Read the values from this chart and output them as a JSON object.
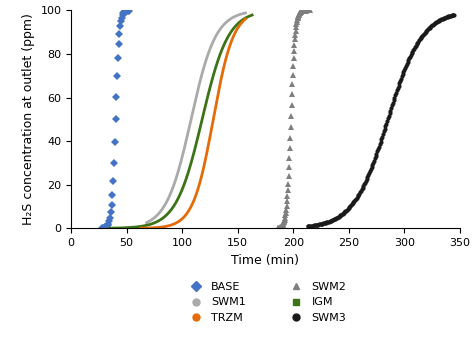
{
  "title": "",
  "xlabel": "Time (min)",
  "ylabel": "H₂S concentration at outlet (ppm)",
  "xlim": [
    0,
    350
  ],
  "ylim": [
    0,
    100
  ],
  "xticks": [
    0,
    50,
    100,
    150,
    200,
    250,
    300,
    350
  ],
  "yticks": [
    0,
    20,
    40,
    60,
    80,
    100
  ],
  "series": {
    "BASE": {
      "color": "#4472C4",
      "marker": "D",
      "markersize": 4
    },
    "TRZM": {
      "color": "#E36C09",
      "marker": "o",
      "markersize": 4
    },
    "IGM": {
      "color": "#3D7317",
      "marker": "s",
      "markersize": 4
    },
    "SWM1": {
      "color": "#AAAAAA",
      "marker": "o",
      "markersize": 4
    },
    "SWM2": {
      "color": "#7F7F7F",
      "marker": "^",
      "markersize": 4
    },
    "SWM3": {
      "color": "#1A1A1A",
      "marker": "o",
      "markersize": 3
    }
  },
  "legend_fontsize": 8,
  "axis_fontsize": 9,
  "tick_fontsize": 8
}
